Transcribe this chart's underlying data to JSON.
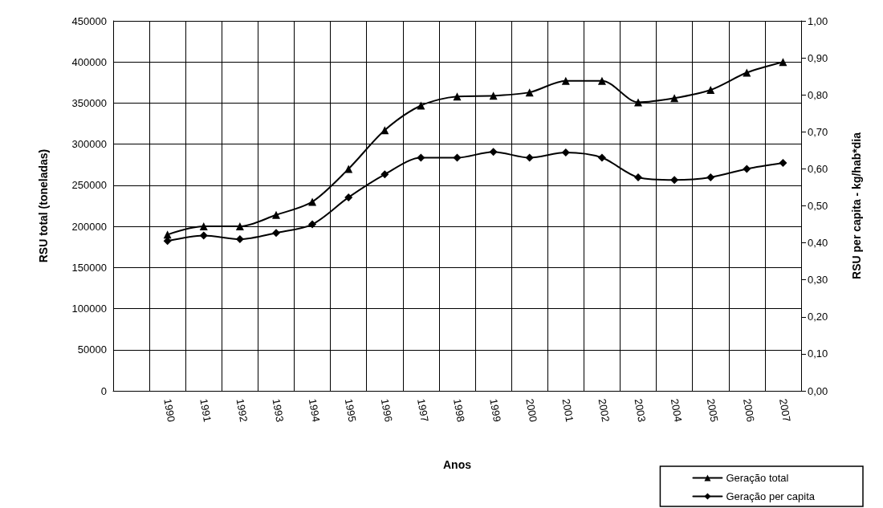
{
  "chart_data": {
    "type": "line",
    "xlabel": "Anos",
    "ylabel": "RSU total (toneladas)",
    "y2label": "RSU per capita - kg/hab*dia",
    "categories": [
      null,
      "1990",
      "1991",
      "1992",
      "1993",
      "1994",
      "1995",
      "1996",
      "1997",
      "1998",
      "1999",
      "2000",
      "2001",
      "2002",
      "2003",
      "2004",
      "2005",
      "2006",
      "2007"
    ],
    "series": [
      {
        "name": "Geração total",
        "color": "#000000",
        "marker": "triangle",
        "values": [
          null,
          190000,
          200000,
          200000,
          214000,
          230000,
          270000,
          317000,
          347000,
          358000,
          359000,
          363000,
          377000,
          377000,
          351000,
          356000,
          366000,
          387000,
          400000
        ]
      },
      {
        "name": "Geração per capita",
        "color": "#000000",
        "marker": "diamond",
        "axis": "y2",
        "values": [
          null,
          0.405,
          0.42,
          0.41,
          0.427,
          0.45,
          0.523,
          0.585,
          0.63,
          0.63,
          0.646,
          0.63,
          0.644,
          0.63,
          0.577,
          0.57,
          0.577,
          0.6,
          0.616
        ]
      }
    ],
    "ylim": [
      0,
      450000
    ],
    "yticks": [
      0,
      50000,
      100000,
      150000,
      200000,
      250000,
      300000,
      350000,
      400000,
      450000
    ],
    "y2lim": [
      0,
      1
    ],
    "y2ticks": [
      {
        "value": 0,
        "label": "0,00"
      },
      {
        "value": 0.1,
        "label": "0,10"
      },
      {
        "value": 0.2,
        "label": "0,20"
      },
      {
        "value": 0.3,
        "label": "0,30"
      },
      {
        "value": 0.4,
        "label": "0,40"
      },
      {
        "value": 0.5,
        "label": "0,50"
      },
      {
        "value": 0.6,
        "label": "0,60"
      },
      {
        "value": 0.7,
        "label": "0,70"
      },
      {
        "value": 0.8,
        "label": "0,80"
      },
      {
        "value": 0.9,
        "label": "0,90"
      },
      {
        "value": 1,
        "label": "1,00"
      }
    ],
    "grid": true,
    "legend": "bottom right",
    "line_style": "solid"
  }
}
